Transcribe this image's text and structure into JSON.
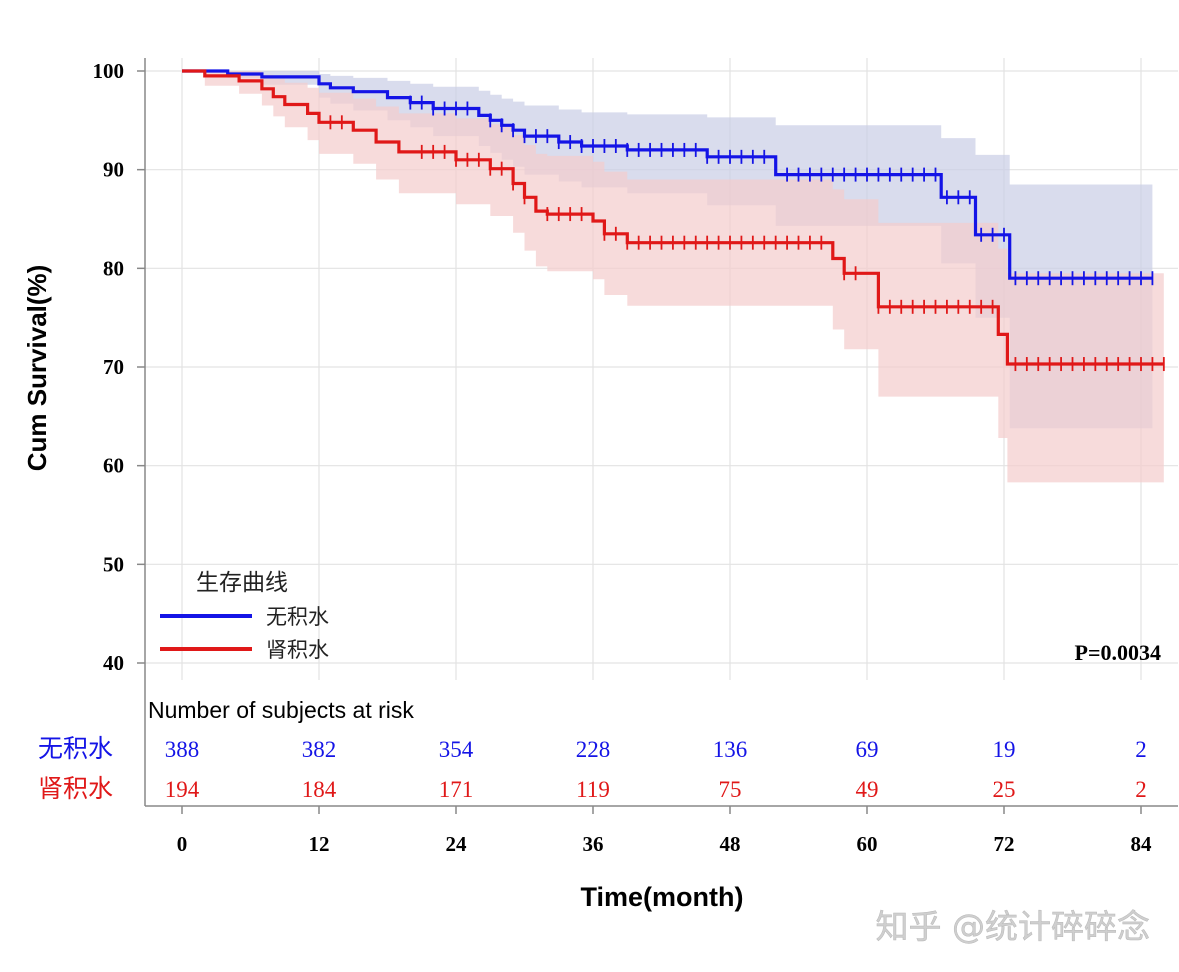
{
  "chart_data": {
    "type": "line",
    "subtype": "kaplan-meier",
    "ylabel": "Cum Survival(%)",
    "xlabel": "Time(month)",
    "xlim": [
      -3,
      86
    ],
    "ylim": [
      40,
      100
    ],
    "x_ticks": [
      0,
      12,
      24,
      36,
      48,
      60,
      72,
      84
    ],
    "y_ticks": [
      40,
      50,
      60,
      70,
      80,
      90,
      100
    ],
    "grid": true,
    "legend": {
      "title": "生存曲线",
      "placement": "bottom-left"
    },
    "p_value": "P=0.0034",
    "watermark": "知乎 @统计碎碎念",
    "series": [
      {
        "name": "无积水",
        "color": "#1414e6",
        "band_color": "#c9cde6",
        "steps": [
          [
            0,
            100
          ],
          [
            4,
            99.7
          ],
          [
            7,
            99.4
          ],
          [
            12,
            98.7
          ],
          [
            13,
            98.3
          ],
          [
            15,
            97.9
          ],
          [
            18,
            97.3
          ],
          [
            20,
            96.8
          ],
          [
            22,
            96.2
          ],
          [
            26,
            95.5
          ],
          [
            27,
            95.0
          ],
          [
            28,
            94.5
          ],
          [
            29,
            94.0
          ],
          [
            30,
            93.4
          ],
          [
            33,
            92.8
          ],
          [
            35,
            92.4
          ],
          [
            39,
            92.0
          ],
          [
            46,
            91.3
          ],
          [
            52,
            89.5
          ],
          [
            66.5,
            87.2
          ],
          [
            69.5,
            83.4
          ],
          [
            72.5,
            79.0
          ],
          [
            85,
            79.0
          ]
        ],
        "censor_x": [
          20,
          21,
          22,
          23,
          24,
          25,
          27,
          28,
          29,
          30,
          31,
          32,
          33,
          34,
          35,
          36,
          37,
          38,
          39,
          40,
          41,
          42,
          43,
          44,
          45,
          46,
          47,
          48,
          49,
          50,
          51,
          53,
          54,
          55,
          56,
          57,
          58,
          59,
          60,
          61,
          62,
          63,
          64,
          65,
          66,
          67,
          68,
          69,
          70,
          71,
          72,
          73,
          74,
          75,
          76,
          77,
          78,
          79,
          80,
          81,
          82,
          83,
          84,
          85
        ],
        "ci_lower": [
          [
            0,
            100
          ],
          [
            4,
            99.3
          ],
          [
            7,
            98.6
          ],
          [
            12,
            97.3
          ],
          [
            13,
            96.7
          ],
          [
            15,
            96.0
          ],
          [
            18,
            95.0
          ],
          [
            20,
            94.3
          ],
          [
            22,
            93.4
          ],
          [
            26,
            92.4
          ],
          [
            27,
            91.7
          ],
          [
            28,
            91.0
          ],
          [
            29,
            90.3
          ],
          [
            30,
            89.5
          ],
          [
            33,
            88.8
          ],
          [
            35,
            88.2
          ],
          [
            39,
            87.6
          ],
          [
            46,
            86.4
          ],
          [
            52,
            84.3
          ],
          [
            66.5,
            80.5
          ],
          [
            69.5,
            75.0
          ],
          [
            72.5,
            63.8
          ],
          [
            85,
            63.8
          ]
        ],
        "ci_upper": [
          [
            0,
            100
          ],
          [
            4,
            100
          ],
          [
            7,
            100
          ],
          [
            12,
            99.7
          ],
          [
            13,
            99.5
          ],
          [
            15,
            99.3
          ],
          [
            18,
            99.0
          ],
          [
            20,
            98.7
          ],
          [
            22,
            98.4
          ],
          [
            26,
            98.0
          ],
          [
            27,
            97.6
          ],
          [
            28,
            97.2
          ],
          [
            29,
            96.9
          ],
          [
            30,
            96.5
          ],
          [
            33,
            96.1
          ],
          [
            35,
            95.8
          ],
          [
            39,
            95.6
          ],
          [
            46,
            95.3
          ],
          [
            52,
            94.5
          ],
          [
            66.5,
            93.2
          ],
          [
            69.5,
            91.5
          ],
          [
            72.5,
            88.5
          ],
          [
            85,
            88.5
          ]
        ],
        "at_risk": [
          388,
          382,
          354,
          228,
          136,
          69,
          19,
          2
        ]
      },
      {
        "name": "肾积水",
        "color": "#e01818",
        "band_color": "#f3cccc",
        "steps": [
          [
            0,
            100
          ],
          [
            2,
            99.5
          ],
          [
            5,
            99.0
          ],
          [
            7,
            98.2
          ],
          [
            8,
            97.4
          ],
          [
            9,
            96.6
          ],
          [
            11,
            95.7
          ],
          [
            12,
            94.8
          ],
          [
            15,
            94.0
          ],
          [
            17,
            92.8
          ],
          [
            19,
            91.8
          ],
          [
            24,
            91.0
          ],
          [
            27,
            90.1
          ],
          [
            29,
            88.6
          ],
          [
            30,
            87.2
          ],
          [
            31,
            85.8
          ],
          [
            32,
            85.5
          ],
          [
            36,
            84.8
          ],
          [
            37,
            83.5
          ],
          [
            39,
            82.6
          ],
          [
            57,
            81.0
          ],
          [
            58,
            79.5
          ],
          [
            61,
            76.1
          ],
          [
            71.5,
            73.3
          ],
          [
            72.3,
            70.3
          ],
          [
            86,
            70.3
          ]
        ],
        "censor_x": [
          13,
          14,
          21,
          22,
          23,
          24,
          25,
          26,
          27,
          28,
          29,
          30,
          32,
          33,
          34,
          35,
          37,
          38,
          39,
          40,
          41,
          42,
          43,
          44,
          45,
          46,
          47,
          48,
          49,
          50,
          51,
          52,
          53,
          54,
          55,
          56,
          58,
          59,
          61,
          62,
          63,
          64,
          65,
          66,
          67,
          68,
          69,
          70,
          71,
          73,
          74,
          75,
          76,
          77,
          78,
          79,
          80,
          81,
          82,
          83,
          84,
          85,
          86
        ],
        "ci_lower": [
          [
            0,
            100
          ],
          [
            2,
            98.5
          ],
          [
            5,
            97.7
          ],
          [
            7,
            96.5
          ],
          [
            8,
            95.4
          ],
          [
            9,
            94.3
          ],
          [
            11,
            93.0
          ],
          [
            12,
            91.6
          ],
          [
            15,
            90.6
          ],
          [
            17,
            89.0
          ],
          [
            19,
            87.6
          ],
          [
            24,
            86.5
          ],
          [
            27,
            85.3
          ],
          [
            29,
            83.6
          ],
          [
            30,
            81.8
          ],
          [
            31,
            80.2
          ],
          [
            32,
            79.7
          ],
          [
            36,
            78.9
          ],
          [
            37,
            77.3
          ],
          [
            39,
            76.2
          ],
          [
            57,
            73.8
          ],
          [
            58,
            71.8
          ],
          [
            61,
            67.0
          ],
          [
            71.5,
            62.8
          ],
          [
            72.3,
            58.3
          ],
          [
            86,
            58.3
          ]
        ],
        "ci_upper": [
          [
            0,
            100
          ],
          [
            2,
            100
          ],
          [
            5,
            100
          ],
          [
            7,
            99.6
          ],
          [
            8,
            99.2
          ],
          [
            9,
            98.8
          ],
          [
            11,
            98.3
          ],
          [
            12,
            97.8
          ],
          [
            15,
            97.2
          ],
          [
            17,
            96.4
          ],
          [
            19,
            95.7
          ],
          [
            24,
            95.2
          ],
          [
            27,
            94.6
          ],
          [
            29,
            93.5
          ],
          [
            30,
            92.5
          ],
          [
            31,
            91.6
          ],
          [
            32,
            91.4
          ],
          [
            36,
            90.8
          ],
          [
            37,
            89.8
          ],
          [
            39,
            89.0
          ],
          [
            57,
            88.0
          ],
          [
            58,
            87.0
          ],
          [
            61,
            84.6
          ],
          [
            71.5,
            82.0
          ],
          [
            72.3,
            79.5
          ],
          [
            86,
            79.5
          ]
        ],
        "at_risk": [
          194,
          184,
          171,
          119,
          75,
          49,
          25,
          2
        ]
      }
    ],
    "risk_table": {
      "title": "Number of subjects at risk",
      "times": [
        0,
        12,
        24,
        36,
        48,
        60,
        72,
        84
      ]
    }
  }
}
